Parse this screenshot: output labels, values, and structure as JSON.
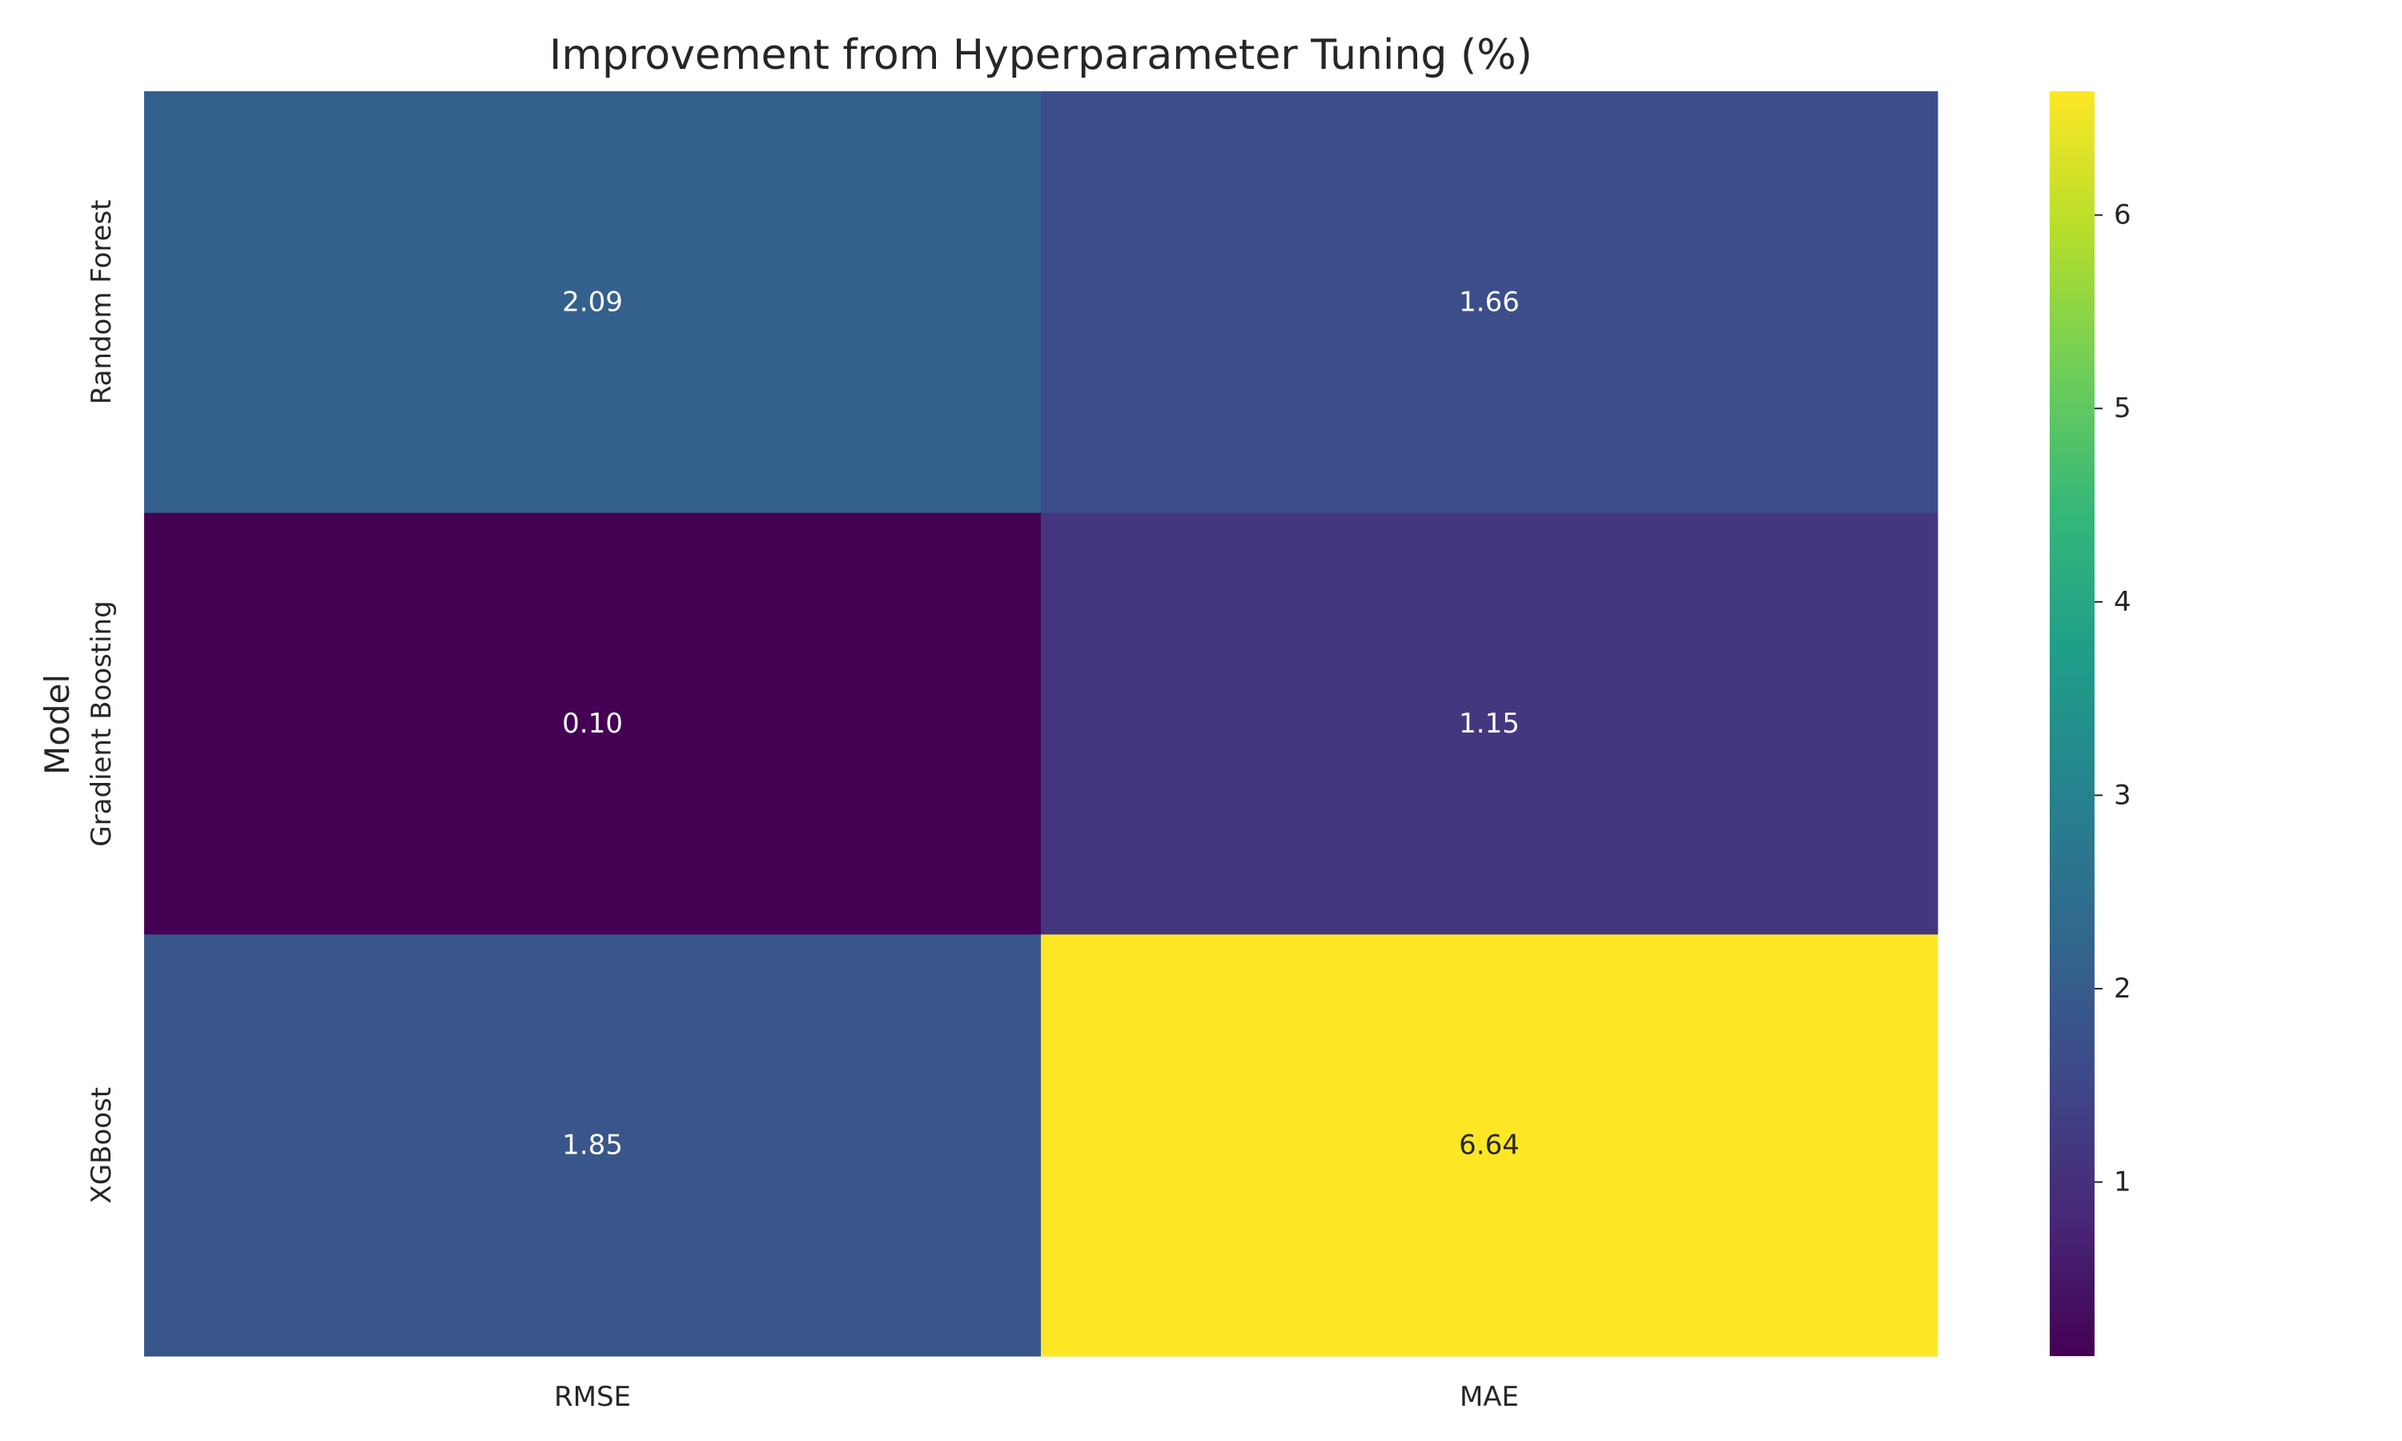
{
  "chart_data": {
    "type": "heatmap",
    "title": "Improvement from Hyperparameter Tuning (%)",
    "xlabel": "",
    "ylabel": "Model",
    "columns": [
      "RMSE",
      "MAE"
    ],
    "rows": [
      "Random Forest",
      "Gradient Boosting",
      "XGBoost"
    ],
    "values": [
      [
        2.09,
        1.66
      ],
      [
        0.1,
        1.15
      ],
      [
        1.85,
        6.64
      ]
    ],
    "cell_labels": [
      [
        "2.09",
        "1.66"
      ],
      [
        "0.10",
        "1.15"
      ],
      [
        "1.85",
        "6.64"
      ]
    ],
    "colormap": "viridis",
    "color_range": [
      0.1,
      6.64
    ],
    "colorbar_ticks": [
      1,
      2,
      3,
      4,
      5,
      6
    ],
    "colorbar_tick_labels": [
      "1",
      "2",
      "3",
      "4",
      "5",
      "6"
    ],
    "grid": false,
    "colorbar_placement": "right"
  }
}
